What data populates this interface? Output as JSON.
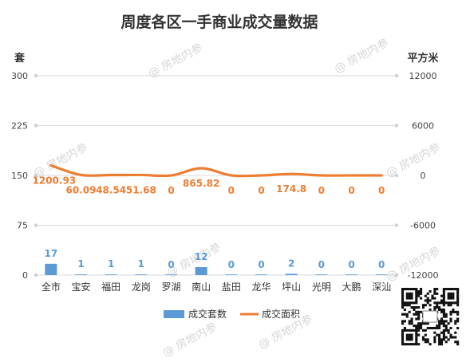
{
  "chart_data": {
    "type": "bar",
    "title": "周度各区一手商业成交量数据",
    "categories": [
      "全市",
      "宝安",
      "福田",
      "龙岗",
      "罗湖",
      "南山",
      "盐田",
      "龙华",
      "坪山",
      "光明",
      "大鹏",
      "深汕"
    ],
    "series": [
      {
        "name": "成交套数",
        "type": "bar",
        "axis": "left",
        "color": "#5B9BD5",
        "values": [
          17,
          1,
          1,
          1,
          0,
          12,
          0,
          0,
          2,
          0,
          0,
          0
        ],
        "labels": [
          "17",
          "1",
          "1",
          "1",
          "0",
          "12",
          "0",
          "0",
          "2",
          "0",
          "0",
          "0"
        ]
      },
      {
        "name": "成交面积",
        "type": "line",
        "axis": "right",
        "color": "#ED7D31",
        "values": [
          1200.93,
          60.09,
          48.54,
          51.68,
          0,
          865.82,
          0,
          0,
          174.8,
          0,
          0,
          0
        ],
        "labels": [
          "1200.93",
          "60.09",
          "48.54",
          "51.68",
          "0",
          "865.82",
          "0",
          "0",
          "174.8",
          "0",
          "0",
          "0"
        ]
      }
    ],
    "y_left": {
      "unit": "套",
      "range": [
        0,
        300
      ],
      "ticks": [
        "300",
        "225",
        "150",
        "75",
        "0"
      ]
    },
    "y_right": {
      "unit": "平方米",
      "range": [
        -12000,
        12000
      ],
      "ticks": [
        "12000",
        "6000",
        "0",
        "-6000",
        "-12000"
      ]
    },
    "grid": true,
    "legend_position": "bottom",
    "watermark": "@ 房地内参"
  }
}
